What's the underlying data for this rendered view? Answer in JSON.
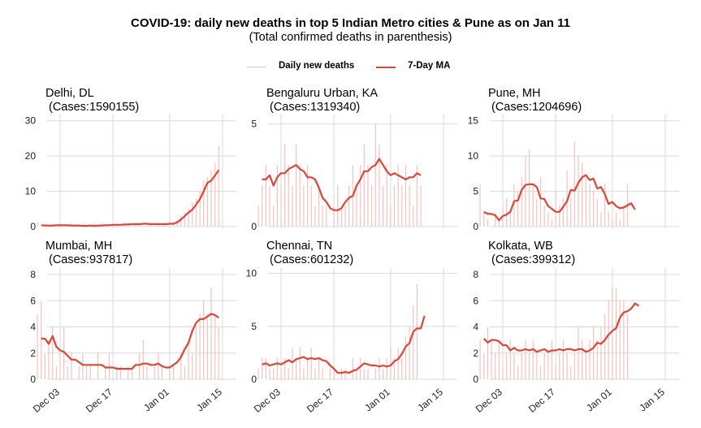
{
  "title": "COVID-19: daily new deaths in top 5 Indian Metro cities & Pune as on Jan 11",
  "subtitle": "(Total confirmed deaths in parenthesis)",
  "legend": {
    "daily_label": "Daily new deaths",
    "ma_label": "7-Day MA",
    "daily_color": "#f2c2c0",
    "ma_color": "#d8473a"
  },
  "x_ticks": [
    "Dec 03",
    "Dec 17",
    "Jan 01",
    "Jan 15"
  ],
  "chart_data": [
    {
      "type": "bar+line",
      "panel": "Delhi, DL",
      "cases_label": "(Cases:1590155)",
      "ylim": [
        0,
        32
      ],
      "yticks": [
        0,
        10,
        20,
        30
      ],
      "x_start": "2021-11-27",
      "daily": [
        1,
        0,
        1,
        0,
        0,
        0,
        1,
        0,
        0,
        1,
        0,
        0,
        1,
        0,
        0,
        1,
        0,
        1,
        0,
        0,
        0,
        1,
        0,
        1,
        1,
        0,
        1,
        1,
        0,
        1,
        1,
        0,
        1,
        0,
        1,
        0,
        1,
        2,
        3,
        4,
        5,
        7,
        8,
        10,
        13,
        14,
        16,
        18,
        23
      ],
      "ma": [
        0.4,
        0.3,
        0.3,
        0.3,
        0.4,
        0.4,
        0.4,
        0.4,
        0.3,
        0.3,
        0.3,
        0.2,
        0.2,
        0.3,
        0.2,
        0.3,
        0.3,
        0.4,
        0.4,
        0.5,
        0.5,
        0.5,
        0.6,
        0.6,
        0.7,
        0.7,
        0.7,
        0.8,
        0.8,
        0.7,
        0.7,
        0.7,
        0.7,
        0.7,
        0.8,
        0.8,
        1.2,
        2.0,
        3.0,
        4.0,
        4.8,
        6.2,
        7.8,
        10.0,
        12.4,
        13.0,
        14.5,
        16.0
      ]
    },
    {
      "type": "bar+line",
      "panel": "Bengaluru Urban, KA",
      "cases_label": "(Cases:1319340)",
      "ylim": [
        0,
        5.5
      ],
      "yticks": [
        0,
        5
      ],
      "x_start": "2021-11-27",
      "daily": [
        1,
        2,
        3,
        2,
        1,
        3,
        2,
        4,
        3,
        2,
        4,
        3,
        2,
        3,
        2,
        1,
        2,
        1,
        1,
        0,
        1,
        2,
        1,
        1,
        2,
        3,
        2,
        3,
        4,
        3,
        2,
        5,
        4,
        2,
        3,
        1,
        2,
        3,
        2,
        3,
        2,
        1,
        3,
        2
      ],
      "ma": [
        2.3,
        2.3,
        2.5,
        2.0,
        2.4,
        2.6,
        2.6,
        2.8,
        2.9,
        3.0,
        2.8,
        2.7,
        2.4,
        2.4,
        2.3,
        1.9,
        1.4,
        1.2,
        0.9,
        0.8,
        0.8,
        0.9,
        1.2,
        1.4,
        1.5,
        2.0,
        2.3,
        2.7,
        2.7,
        2.9,
        3.0,
        3.3,
        3.0,
        2.7,
        2.5,
        2.6,
        2.5,
        2.4,
        2.3,
        2.4,
        2.4,
        2.6,
        2.5
      ]
    },
    {
      "type": "bar+line",
      "panel": "Pune, MH",
      "cases_label": "(Cases:1204696)",
      "ylim": [
        0,
        16
      ],
      "yticks": [
        0,
        5,
        10,
        15
      ],
      "x_start": "2021-11-27",
      "daily": [
        6,
        2,
        1,
        0,
        2,
        1,
        3,
        4,
        2,
        6,
        5,
        7,
        10,
        11,
        6,
        4,
        7,
        3,
        2,
        1,
        5,
        3,
        4,
        8,
        4,
        12,
        10,
        9,
        7,
        6,
        5,
        4,
        2,
        6,
        2,
        1,
        2,
        1,
        3,
        6
      ],
      "ma": [
        2.1,
        1.8,
        1.8,
        1.6,
        0.9,
        1.5,
        1.7,
        2.1,
        3.6,
        3.7,
        5.2,
        5.9,
        6.0,
        6.0,
        5.6,
        4.0,
        3.9,
        2.9,
        2.5,
        2.1,
        2.1,
        2.8,
        3.6,
        5.2,
        5.1,
        6.2,
        7.0,
        7.3,
        6.6,
        6.8,
        5.4,
        5.6,
        4.6,
        3.2,
        3.5,
        2.9,
        2.6,
        2.7,
        3.0,
        3.3,
        2.4
      ]
    },
    {
      "type": "bar+line",
      "panel": "Mumbai, MH",
      "cases_label": "(Cases:937817)",
      "ylim": [
        0,
        8.5
      ],
      "yticks": [
        0,
        2,
        4,
        6,
        8
      ],
      "x_start": "2021-11-27",
      "daily": [
        5,
        6,
        2,
        3,
        4,
        1,
        2,
        4,
        1,
        2,
        0,
        1,
        2,
        1,
        1,
        0,
        2,
        0,
        1,
        2,
        0,
        1,
        1,
        0,
        1,
        1,
        0,
        2,
        3,
        1,
        0,
        1,
        2,
        1,
        0,
        1,
        1,
        0,
        2,
        1,
        3,
        2,
        4,
        5,
        6,
        5,
        7,
        5,
        4
      ],
      "ma": [
        3.1,
        3.1,
        2.7,
        3.3,
        2.5,
        2.2,
        2.1,
        1.8,
        1.5,
        1.5,
        1.3,
        1.1,
        1.1,
        1.1,
        1.1,
        1.1,
        1.1,
        0.9,
        0.9,
        0.9,
        0.8,
        0.8,
        0.8,
        0.8,
        0.8,
        1.1,
        1.1,
        1.2,
        1.2,
        1.1,
        1.1,
        1.2,
        1.0,
        0.9,
        0.9,
        1.1,
        1.3,
        1.7,
        2.3,
        2.8,
        3.7,
        4.3,
        4.6,
        4.6,
        4.8,
        5.0,
        4.9,
        4.7
      ]
    },
    {
      "type": "bar+line",
      "panel": "Chennai, TN",
      "cases_label": "(Cases:601232)",
      "ylim": [
        0,
        10.5
      ],
      "yticks": [
        0,
        5,
        10
      ],
      "x_start": "2021-11-27",
      "daily": [
        1,
        2,
        2,
        1,
        1,
        2,
        1,
        2,
        1,
        3,
        2,
        3,
        1,
        2,
        3,
        1,
        2,
        1,
        0,
        1,
        1,
        0,
        1,
        1,
        0,
        2,
        1,
        2,
        1,
        1,
        0,
        1,
        2,
        1,
        2,
        3,
        2,
        3,
        2,
        4,
        5,
        7,
        9
      ],
      "ma": [
        1.4,
        1.5,
        1.3,
        1.4,
        1.5,
        1.4,
        1.6,
        1.8,
        1.6,
        1.9,
        2.0,
        2.1,
        1.9,
        2.0,
        1.9,
        2.0,
        1.8,
        1.7,
        1.3,
        1.0,
        0.6,
        0.6,
        0.7,
        0.6,
        0.8,
        0.9,
        1.2,
        1.5,
        1.4,
        1.3,
        1.3,
        1.2,
        1.3,
        1.2,
        1.3,
        1.7,
        1.9,
        2.4,
        3.1,
        3.4,
        4.5,
        4.8,
        4.8,
        6.0
      ]
    },
    {
      "type": "bar+line",
      "panel": "Kolkata, WB",
      "cases_label": "(Cases:399312)",
      "ylim": [
        0,
        8.5
      ],
      "yticks": [
        0,
        2,
        4,
        6,
        8
      ],
      "x_start": "2021-11-27",
      "daily": [
        3,
        2,
        4,
        3,
        2,
        3,
        1,
        2,
        3,
        2,
        1,
        2,
        3,
        2,
        3,
        2,
        1,
        2,
        2,
        3,
        1,
        2,
        3,
        2,
        1,
        2,
        4,
        3,
        2,
        3,
        4,
        3,
        4,
        5,
        6,
        7,
        7,
        6,
        6,
        5
      ],
      "ma": [
        3.1,
        2.8,
        3.0,
        3.0,
        2.9,
        2.6,
        2.6,
        2.2,
        2.4,
        2.2,
        2.2,
        2.3,
        2.2,
        2.3,
        2.1,
        2.2,
        2.3,
        2.1,
        2.2,
        2.2,
        2.3,
        2.2,
        2.3,
        2.3,
        2.2,
        2.3,
        2.3,
        2.1,
        2.2,
        2.4,
        2.8,
        2.7,
        3.0,
        3.4,
        3.7,
        3.9,
        4.7,
        5.1,
        5.2,
        5.4,
        5.8,
        5.6
      ]
    }
  ]
}
